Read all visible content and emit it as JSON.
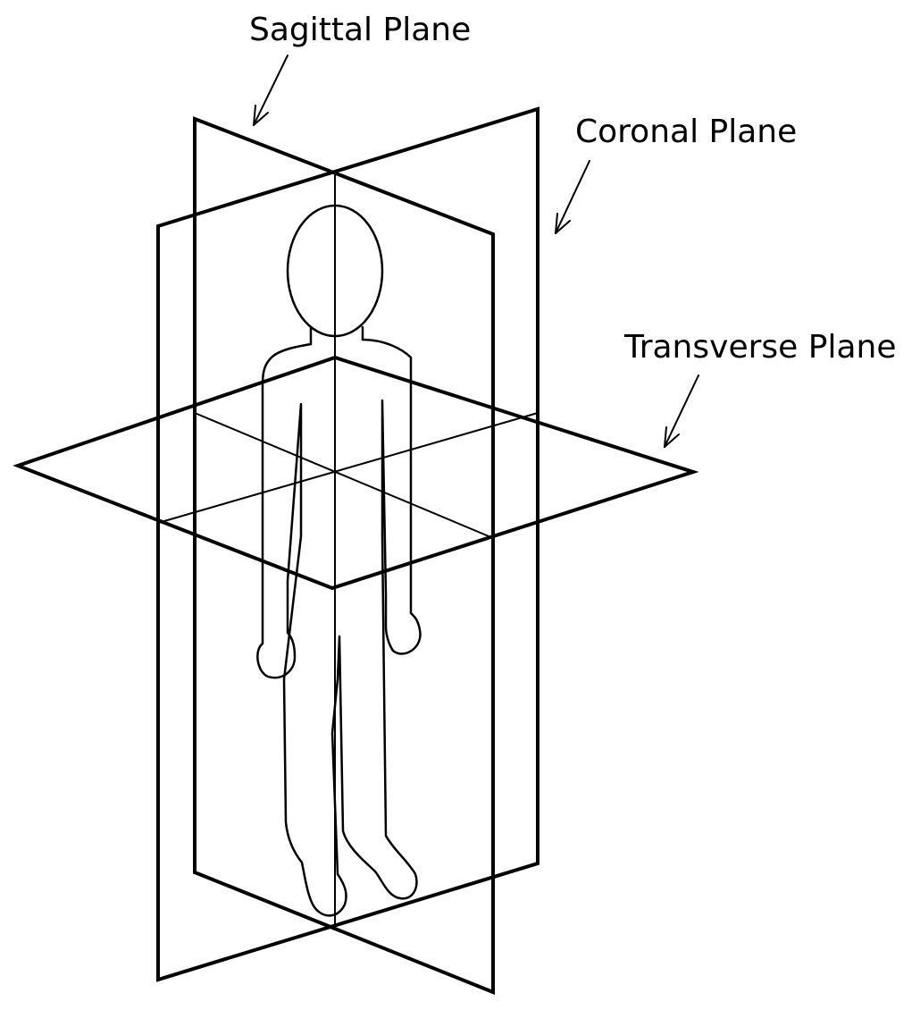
{
  "diagram": {
    "labels": {
      "sagittal": "Sagittal Plane",
      "coronal": "Coronal Plane",
      "transverse": "Transverse Plane"
    }
  },
  "colors": {
    "stroke": "#000000",
    "background": "#ffffff"
  }
}
